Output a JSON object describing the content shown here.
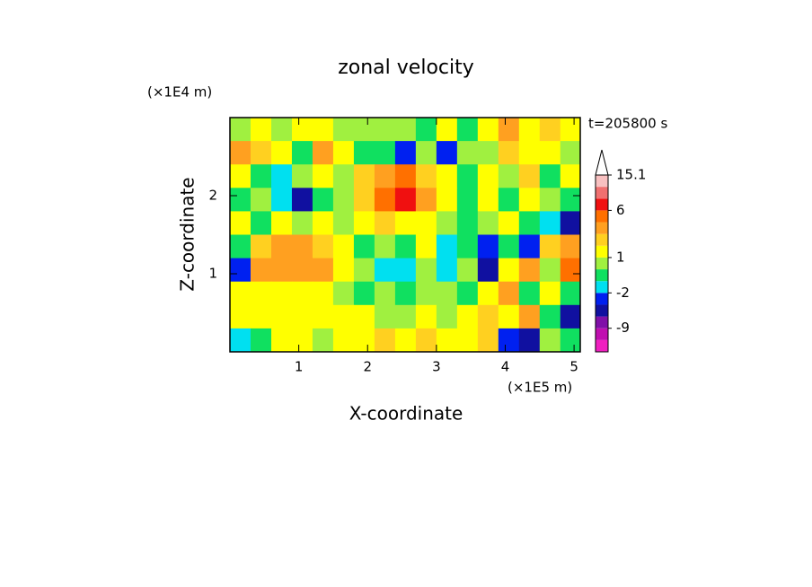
{
  "chart_data": {
    "type": "contour",
    "title": "zonal velocity",
    "time_label": "t=205800 s",
    "xlabel": "X-coordinate",
    "ylabel": "Z-coordinate",
    "x_scale_label": "(×1E5 m)",
    "y_scale_label": "(×1E4 m)",
    "xlim": [
      0,
      5.09
    ],
    "ylim": [
      0,
      3
    ],
    "xticks": [
      1,
      2,
      3,
      4,
      5
    ],
    "yticks": [
      1,
      2
    ],
    "field": {
      "x": [
        0.15,
        0.45,
        0.75,
        1.05,
        1.35,
        1.65,
        1.95,
        2.25,
        2.55,
        2.85,
        3.15,
        3.45,
        3.75,
        4.05,
        4.35,
        4.65,
        4.95
      ],
      "z": [
        2.85,
        2.55,
        2.25,
        1.95,
        1.65,
        1.35,
        1.05,
        0.75,
        0.45,
        0.15
      ],
      "values": [
        [
          0.5,
          1.5,
          0.5,
          1.5,
          1.5,
          0.5,
          0.5,
          0.5,
          0.5,
          -0.5,
          1.5,
          -0.5,
          1.5,
          3.5,
          1.5,
          2.5,
          1.5
        ],
        [
          3.5,
          2.5,
          1.5,
          -0.5,
          3.5,
          1.5,
          -0.5,
          -0.5,
          -3,
          0.5,
          -3,
          0.5,
          0.5,
          2.5,
          1.5,
          1.5,
          0.5
        ],
        [
          1.5,
          -0.5,
          -1.5,
          0.5,
          1.5,
          0.5,
          2.5,
          3.5,
          5,
          2.5,
          1.5,
          -0.5,
          1.5,
          0.5,
          2.5,
          -0.5,
          1.5
        ],
        [
          -0.5,
          0.5,
          -1.5,
          -5,
          -0.5,
          0.5,
          2.5,
          5,
          7,
          3.5,
          1.5,
          -0.5,
          1.5,
          -0.5,
          1.5,
          0.5,
          -0.5
        ],
        [
          1.5,
          -0.5,
          1.5,
          0.5,
          1.5,
          0.5,
          1.5,
          2.5,
          1.5,
          1.5,
          0.5,
          -0.5,
          0.5,
          1.5,
          -0.5,
          -1.5,
          -5
        ],
        [
          -0.5,
          2.5,
          3.5,
          3.5,
          2.5,
          1.5,
          -0.5,
          0.5,
          -0.5,
          1.5,
          -1.5,
          -0.5,
          -3,
          -0.5,
          -3,
          2.5,
          3.5
        ],
        [
          -3,
          3.5,
          3.5,
          3.5,
          3.5,
          1.5,
          0.5,
          -1.5,
          -1.5,
          0.5,
          -1.5,
          0.5,
          -5,
          1.5,
          3.5,
          0.5,
          5
        ],
        [
          1.5,
          1.5,
          1.5,
          1.5,
          1.5,
          0.5,
          -0.5,
          0.5,
          -0.5,
          0.5,
          0.5,
          -0.5,
          1.5,
          3.5,
          -0.5,
          1.5,
          -0.5
        ],
        [
          1.5,
          1.5,
          1.5,
          1.5,
          1.5,
          1.5,
          1.5,
          0.5,
          0.5,
          1.5,
          0.5,
          1.5,
          2.5,
          1.5,
          3.5,
          -0.5,
          -5
        ],
        [
          -1.5,
          -0.5,
          1.5,
          1.5,
          0.5,
          1.5,
          1.5,
          2.5,
          1.5,
          2.5,
          1.5,
          1.5,
          2.5,
          -3,
          -5,
          0.5,
          -0.5
        ]
      ]
    },
    "levels": [
      -12,
      -9,
      -6,
      -4,
      -2,
      -1,
      0,
      1,
      2,
      3,
      4,
      6,
      9,
      12,
      15.1
    ],
    "colors": [
      "#f020c0",
      "#c010b0",
      "#8010a8",
      "#1010a0",
      "#0020f0",
      "#00e0f0",
      "#10e060",
      "#a0f040",
      "#ffff00",
      "#ffd020",
      "#ffa020",
      "#ff7000",
      "#f01010",
      "#f07070",
      "#f8c0c0",
      "#ffffff"
    ],
    "colorbar_ticks": [
      15.1,
      6,
      1,
      -2,
      -9
    ]
  }
}
